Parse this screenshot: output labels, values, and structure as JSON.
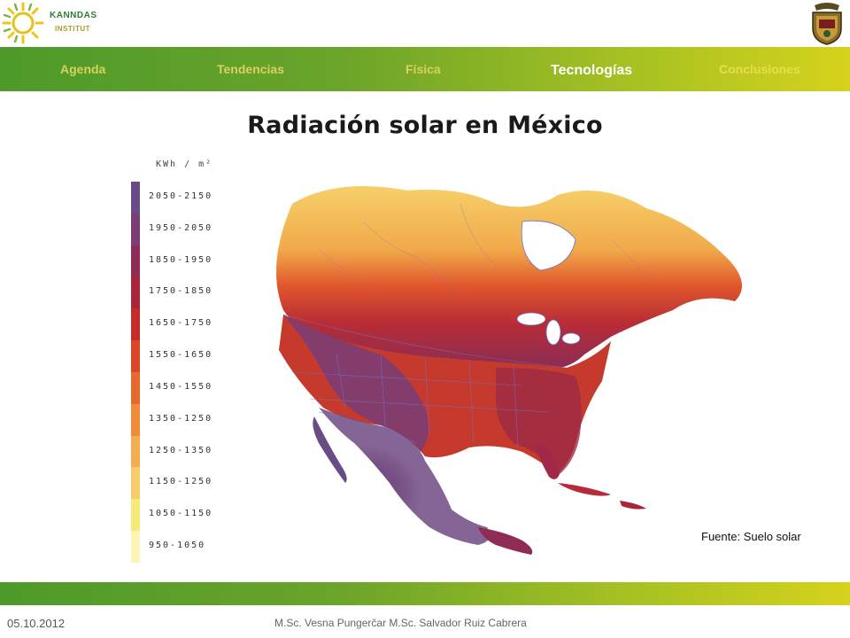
{
  "logo": {
    "line1": "KANNDAS",
    "line2": "INSTITUT"
  },
  "nav": {
    "items": [
      {
        "label": "Agenda"
      },
      {
        "label": "Tendencias"
      },
      {
        "label": "Física"
      },
      {
        "label": "Tecnologías"
      },
      {
        "label": "Conclusiones"
      }
    ],
    "active": "Tecnologías"
  },
  "title": "Radiación solar en México",
  "legend": {
    "unit": "KWh / m²",
    "ranges": [
      {
        "label": "2050-2150",
        "color": "#6a4b86"
      },
      {
        "label": "1950-2050",
        "color": "#7a3d74"
      },
      {
        "label": "1850-1950",
        "color": "#8f2c55"
      },
      {
        "label": "1750-1850",
        "color": "#a8253a"
      },
      {
        "label": "1650-1750",
        "color": "#c22e2c"
      },
      {
        "label": "1550-1650",
        "color": "#d8472a"
      },
      {
        "label": "1450-1550",
        "color": "#e66a30"
      },
      {
        "label": "1350-1250",
        "color": "#ee8c3c"
      },
      {
        "label": "1250-1350",
        "color": "#f3ad52"
      },
      {
        "label": "1150-1250",
        "color": "#f6cd6a"
      },
      {
        "label": "1050-1150",
        "color": "#f8ea7a"
      },
      {
        "label": "950-1050",
        "color": "#fbf6b8"
      }
    ]
  },
  "source": "Fuente:  Suelo solar",
  "footer": {
    "date": "05.10.2012",
    "authors": "M.Sc. Vesna Pungerčar   M.Sc. Salvador Ruiz Cabrera"
  }
}
